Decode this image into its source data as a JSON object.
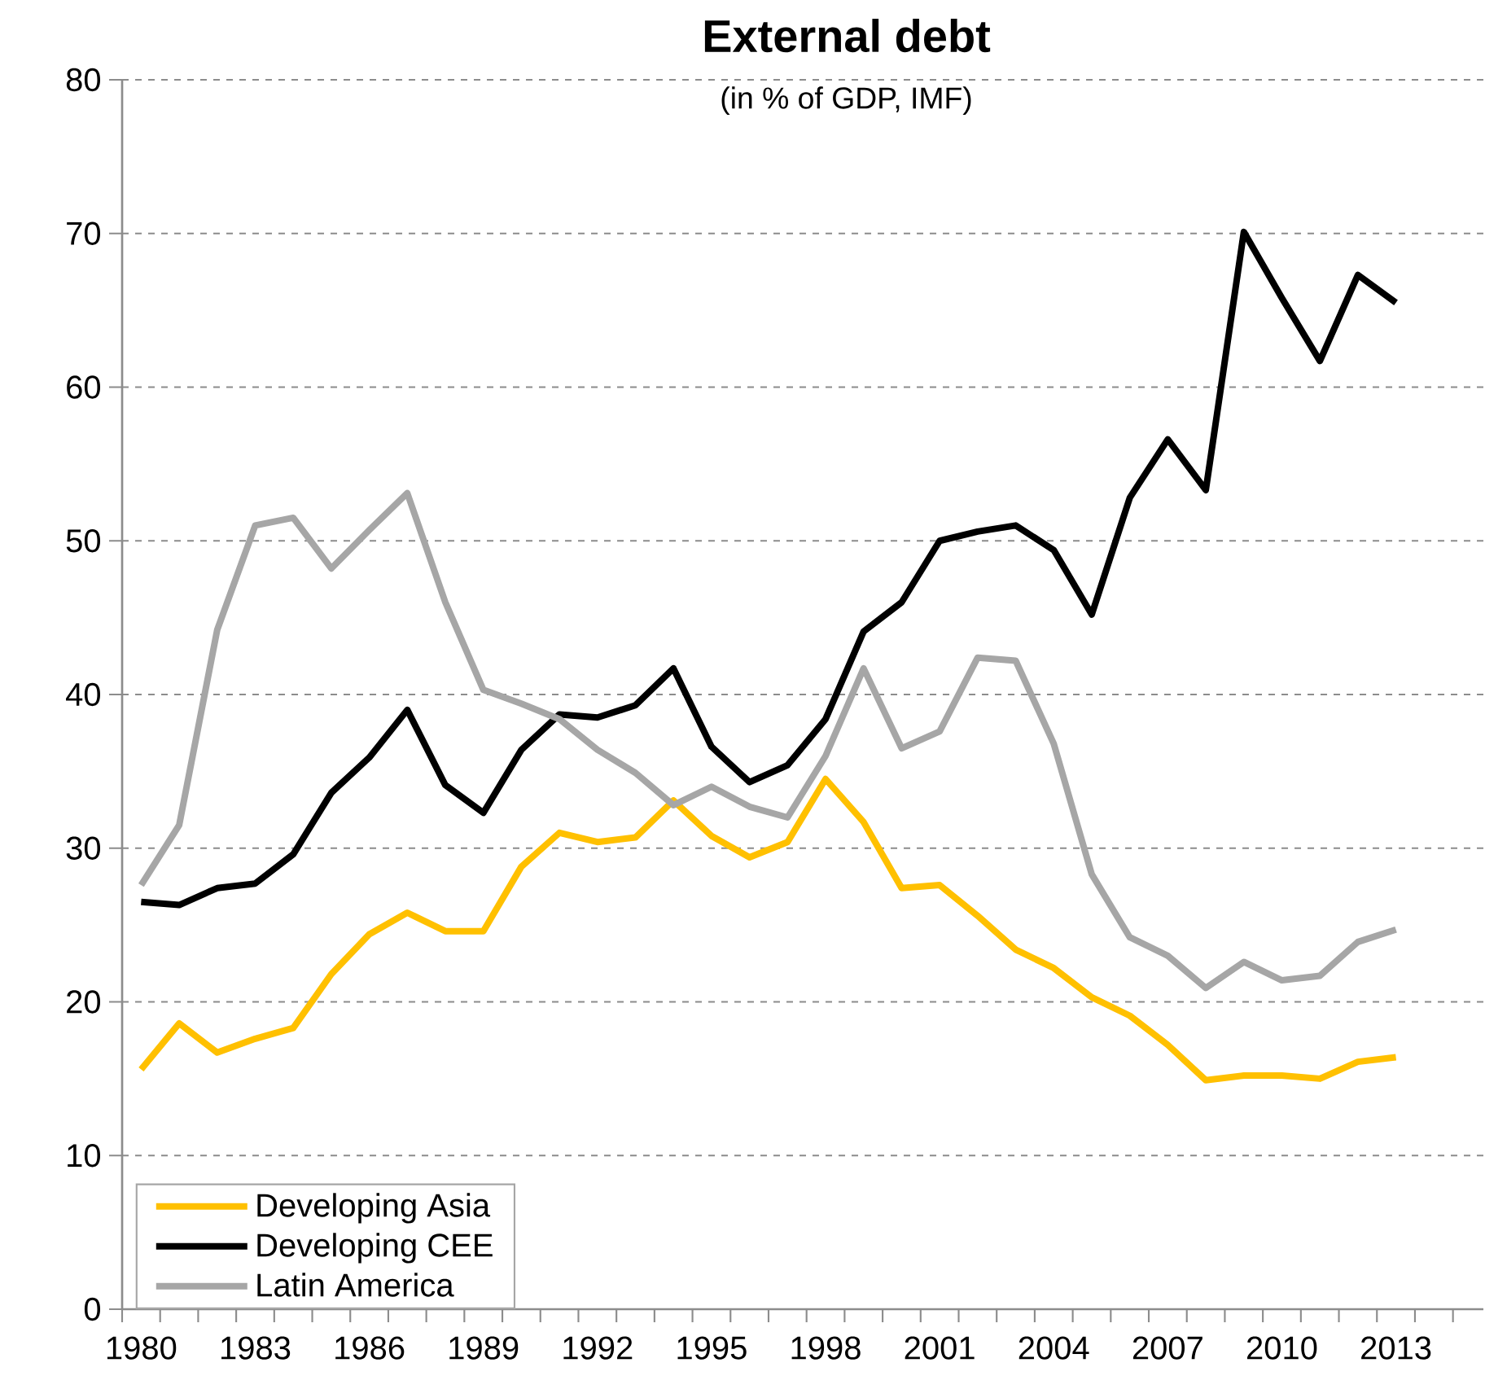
{
  "chart_data": {
    "type": "line",
    "title": "External debt",
    "subtitle": "(in % of GDP, IMF)",
    "x": [
      1980,
      1981,
      1982,
      1983,
      1984,
      1985,
      1986,
      1987,
      1988,
      1989,
      1990,
      1991,
      1992,
      1993,
      1994,
      1995,
      1996,
      1997,
      1998,
      1999,
      2000,
      2001,
      2002,
      2003,
      2004,
      2005,
      2006,
      2007,
      2008,
      2009,
      2010,
      2011,
      2012,
      2013
    ],
    "series": [
      {
        "name": "Developing Asia",
        "color": "#ffc000",
        "values": [
          15.6,
          18.6,
          16.7,
          17.6,
          18.3,
          21.8,
          24.4,
          25.8,
          24.6,
          24.6,
          28.8,
          31.0,
          30.4,
          30.7,
          33.1,
          30.8,
          29.4,
          30.4,
          34.5,
          31.7,
          27.4,
          27.6,
          25.6,
          23.4,
          22.2,
          20.3,
          19.1,
          17.2,
          14.9,
          15.2,
          15.2,
          15.0,
          16.1,
          16.4
        ]
      },
      {
        "name": "Developing CEE",
        "color": "#000000",
        "values": [
          26.5,
          26.3,
          27.4,
          27.7,
          29.6,
          33.6,
          35.9,
          39.0,
          34.1,
          32.3,
          36.4,
          38.7,
          38.5,
          39.3,
          41.7,
          36.6,
          34.3,
          35.4,
          38.4,
          44.1,
          46.0,
          50.0,
          50.6,
          51.0,
          49.4,
          45.2,
          52.8,
          56.6,
          53.3,
          70.1,
          65.8,
          61.7,
          67.3,
          65.5
        ]
      },
      {
        "name": "Latin America",
        "color": "#a6a6a6",
        "values": [
          27.6,
          31.5,
          44.2,
          51.0,
          51.5,
          48.2,
          50.7,
          53.1,
          46.0,
          40.3,
          39.4,
          38.4,
          36.4,
          34.9,
          32.8,
          34.0,
          32.7,
          32.0,
          36.0,
          41.7,
          36.5,
          37.6,
          42.4,
          42.2,
          36.8,
          28.3,
          24.2,
          23.0,
          20.9,
          22.6,
          21.4,
          21.7,
          23.9,
          24.7
        ]
      }
    ],
    "xlim": [
      1979.5,
      2015.3
    ],
    "xticks": [
      1980,
      1983,
      1986,
      1989,
      1992,
      1995,
      1998,
      2001,
      2004,
      2007,
      2010,
      2013
    ],
    "ylim": [
      0,
      80
    ],
    "yticks": [
      0,
      10,
      20,
      30,
      40,
      50,
      60,
      70,
      80
    ],
    "grid": "y",
    "legend": "bottom left",
    "marker": "none",
    "line_style": "solid"
  }
}
